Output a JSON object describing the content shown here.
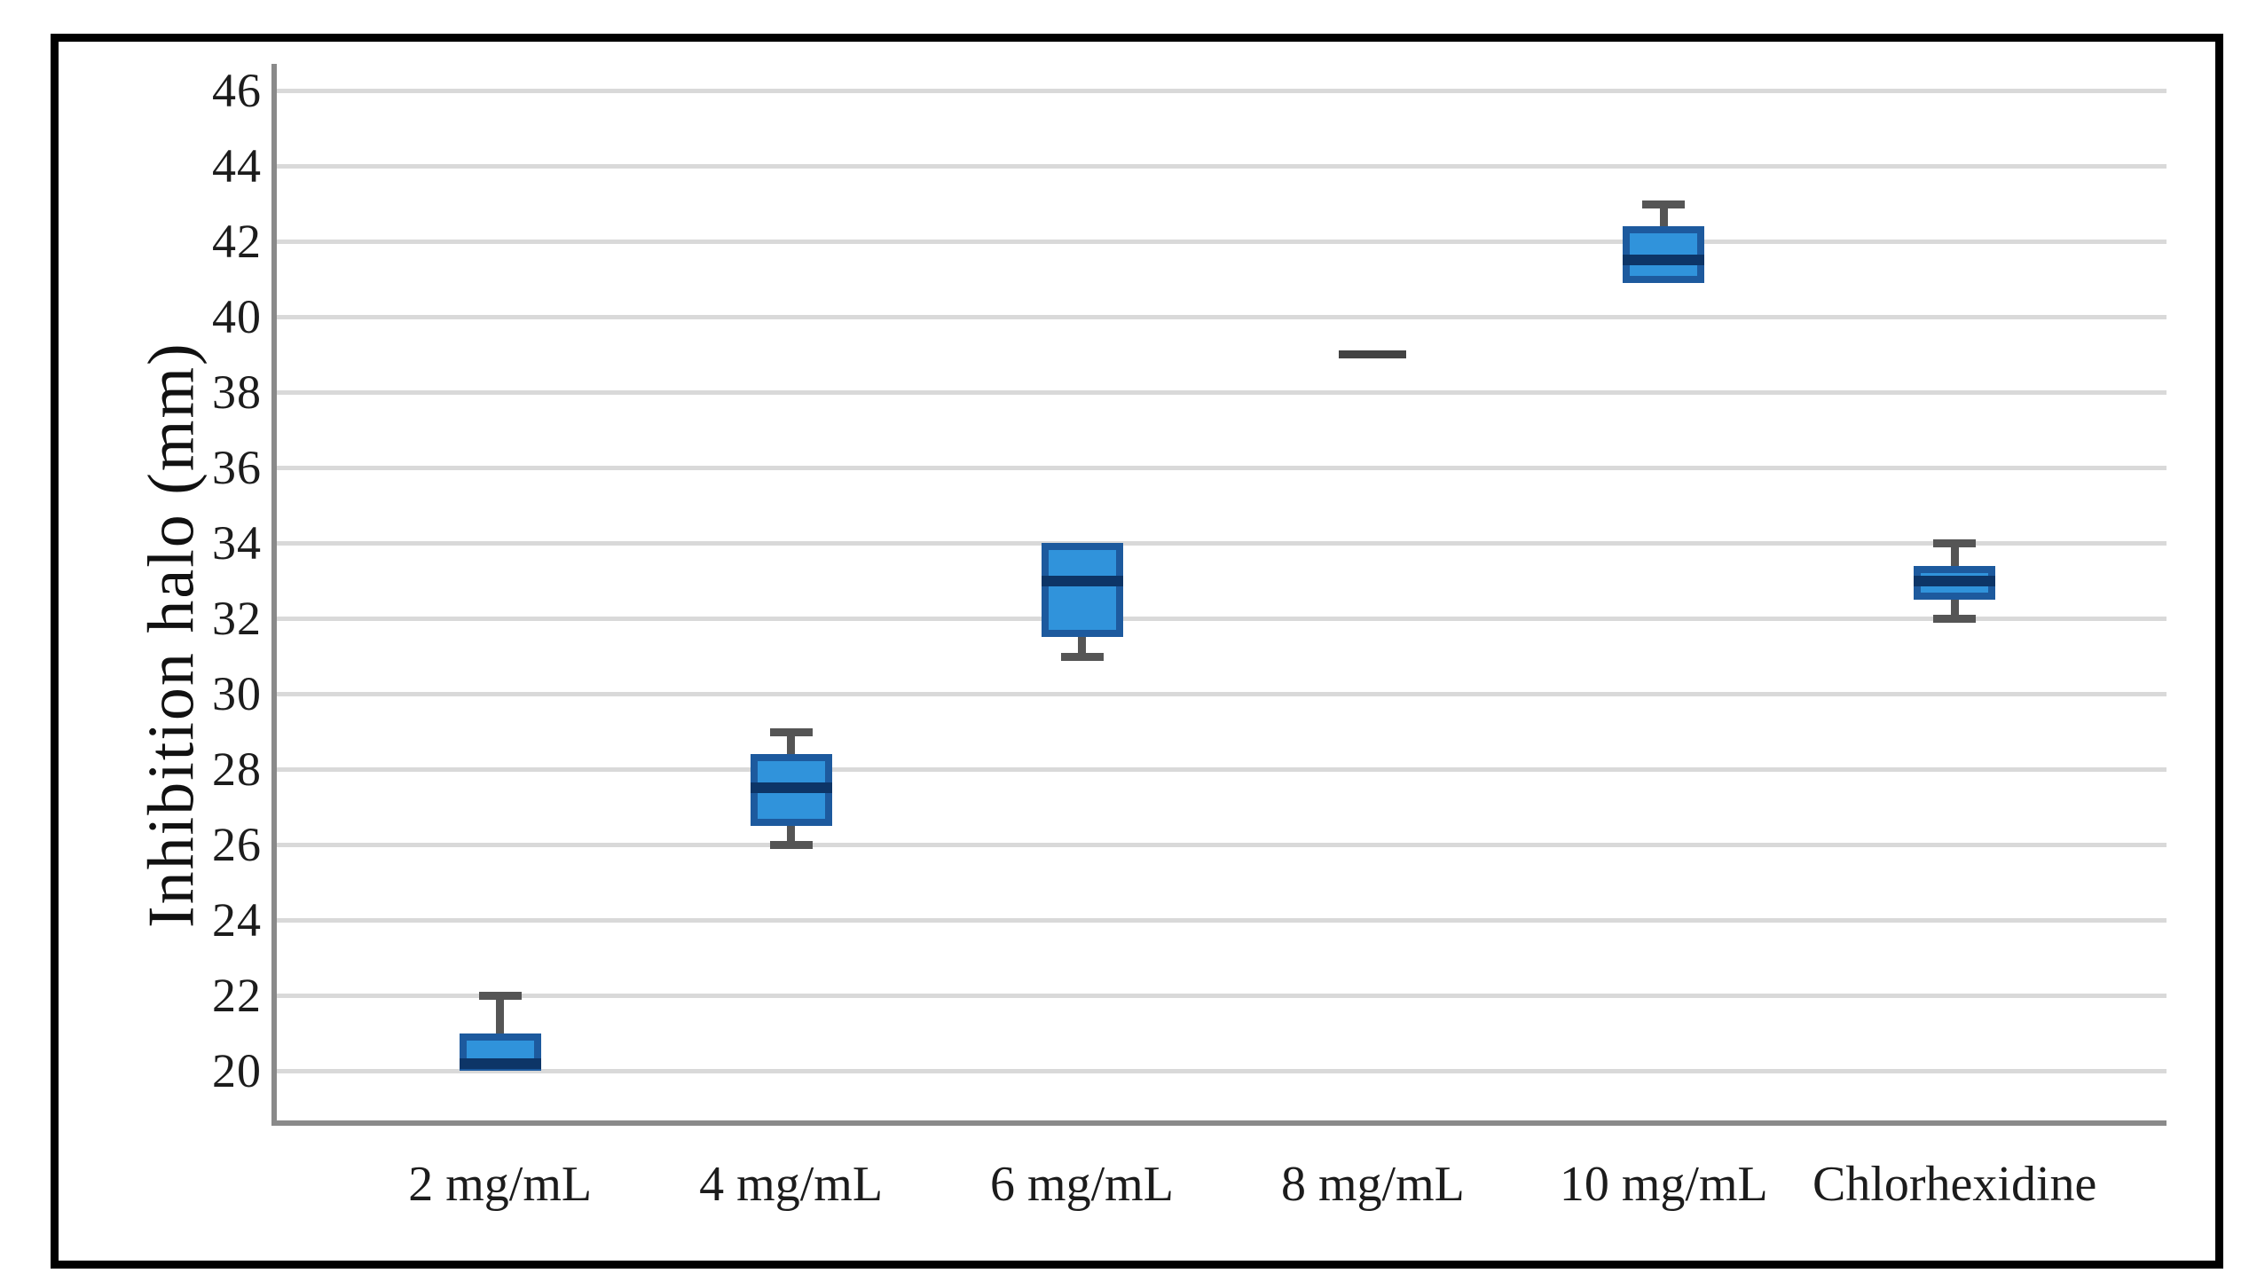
{
  "chart_data": {
    "type": "boxplot",
    "title": "",
    "xlabel": "",
    "ylabel": "Inhibition halo (mm)",
    "categories": [
      "2 mg/mL",
      "4 mg/mL",
      "6 mg/mL",
      "8 mg/mL",
      "10 mg/mL",
      "Chlorhexidine"
    ],
    "y_axis": {
      "tick_min": 20,
      "tick_max": 46,
      "tick_step": 2,
      "tick_labels": [
        "20",
        "22",
        "24",
        "26",
        "28",
        "30",
        "32",
        "34",
        "36",
        "38",
        "40",
        "42",
        "44",
        "46"
      ],
      "grid": true
    },
    "legend": "none",
    "series": [
      {
        "name": "2 mg/mL",
        "min": 20,
        "q1": 20,
        "median": 20.2,
        "q3": 21,
        "max": 22
      },
      {
        "name": "4 mg/mL",
        "min": 26,
        "q1": 26.5,
        "median": 27.5,
        "q3": 28.4,
        "max": 29
      },
      {
        "name": "6 mg/mL",
        "min": 31,
        "q1": 31.5,
        "median": 33,
        "q3": 34,
        "max": 34
      },
      {
        "name": "8 mg/mL",
        "min": 39,
        "q1": 39,
        "median": 39,
        "q3": 39,
        "max": 39
      },
      {
        "name": "10 mg/mL",
        "min": 40.9,
        "q1": 40.9,
        "median": 41.5,
        "q3": 42.4,
        "max": 43
      },
      {
        "name": "Chlorhexidine",
        "min": 32,
        "q1": 32.5,
        "median": 33,
        "q3": 33.4,
        "max": 34
      }
    ],
    "colors": {
      "box_fill": "#3093db",
      "box_border": "#1d5a9e",
      "median": "#0d3567",
      "whisker": "#555555",
      "single_value_dash": "#434343",
      "gridline": "#d9d9d9",
      "axis_line": "#8a8a8a",
      "text": "#1c1c1c",
      "frame_border": "#000000"
    }
  }
}
